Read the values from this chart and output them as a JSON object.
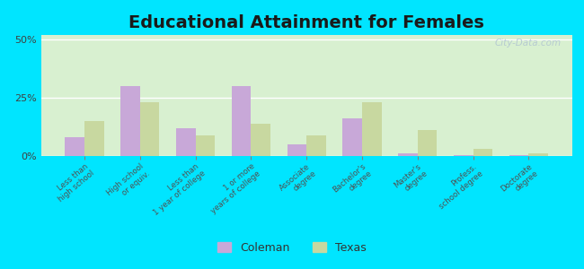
{
  "title": "Educational Attainment for Females",
  "categories": [
    "Less than\nhigh school",
    "High school\nor equiv.",
    "Less than\n1 year of college",
    "1 or more\nyears of college",
    "Associate\ndegree",
    "Bachelor's\ndegree",
    "Master's\ndegree",
    "Profess.\nschool degree",
    "Doctorate\ndegree"
  ],
  "coleman": [
    8,
    30,
    12,
    30,
    5,
    16,
    1,
    0.3,
    0.3
  ],
  "texas": [
    15,
    23,
    9,
    14,
    9,
    23,
    11,
    3,
    1
  ],
  "coleman_color": "#c8a8d8",
  "texas_color": "#c8d8a0",
  "bg_color": "#d8f0d0",
  "outer_bg": "#00e5ff",
  "yticks": [
    0,
    25,
    50
  ],
  "ylim": [
    0,
    52
  ],
  "title_fontsize": 14,
  "watermark": "City-Data.com"
}
